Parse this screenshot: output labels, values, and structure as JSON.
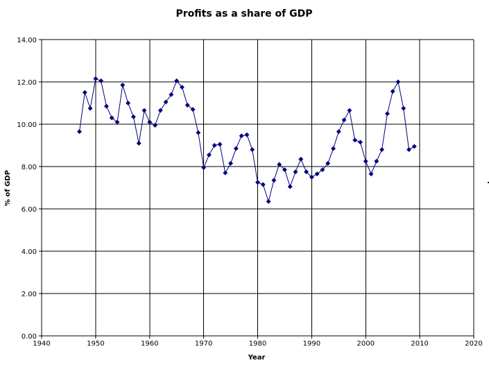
{
  "chart_data": {
    "type": "line",
    "title": "Profits as a share of GDP",
    "xlabel": "Year",
    "ylabel": "% of GDP",
    "xlim": [
      1940,
      2020
    ],
    "ylim": [
      0,
      14
    ],
    "x_ticks": [
      "1940",
      "1950",
      "1960",
      "1970",
      "1980",
      "1990",
      "2000",
      "2010",
      "2020"
    ],
    "y_ticks": [
      "0.00",
      "2.00",
      "4.00",
      "6.00",
      "8.00",
      "10.00",
      "12.00",
      "14.00"
    ],
    "grid": true,
    "legend": "none",
    "colors": {
      "series": "#00007f",
      "grid": "#000000",
      "background": "#ffffff"
    },
    "series": [
      {
        "marker": "diamond",
        "x": [
          1947,
          1948,
          1949,
          1950,
          1951,
          1952,
          1953,
          1954,
          1955,
          1956,
          1957,
          1958,
          1959,
          1960,
          1961,
          1962,
          1963,
          1964,
          1965,
          1966,
          1967,
          1968,
          1969,
          1970,
          1971,
          1972,
          1973,
          1974,
          1975,
          1976,
          1977,
          1978,
          1979,
          1980,
          1981,
          1982,
          1983,
          1984,
          1985,
          1986,
          1987,
          1988,
          1989,
          1990,
          1991,
          1992,
          1993,
          1994,
          1995,
          1996,
          1997,
          1998,
          1999,
          2000,
          2001,
          2002,
          2003,
          2004,
          2005,
          2006,
          2007,
          2008,
          2009
        ],
        "y": [
          9.65,
          11.5,
          10.75,
          12.15,
          12.05,
          10.85,
          10.3,
          10.1,
          11.85,
          11.0,
          10.35,
          9.1,
          10.65,
          10.1,
          9.95,
          10.65,
          11.05,
          11.4,
          12.05,
          11.75,
          10.9,
          10.7,
          9.6,
          7.95,
          8.55,
          9.0,
          9.05,
          7.7,
          8.15,
          8.85,
          9.45,
          9.5,
          8.8,
          7.25,
          7.15,
          6.35,
          7.35,
          8.1,
          7.85,
          7.05,
          7.75,
          8.35,
          7.75,
          7.5,
          7.65,
          7.85,
          8.15,
          8.85,
          9.65,
          10.2,
          10.65,
          9.25,
          9.15,
          8.25,
          7.65,
          8.25,
          8.8,
          10.5,
          11.55,
          12.0,
          10.75,
          8.8,
          8.95
        ]
      }
    ]
  }
}
